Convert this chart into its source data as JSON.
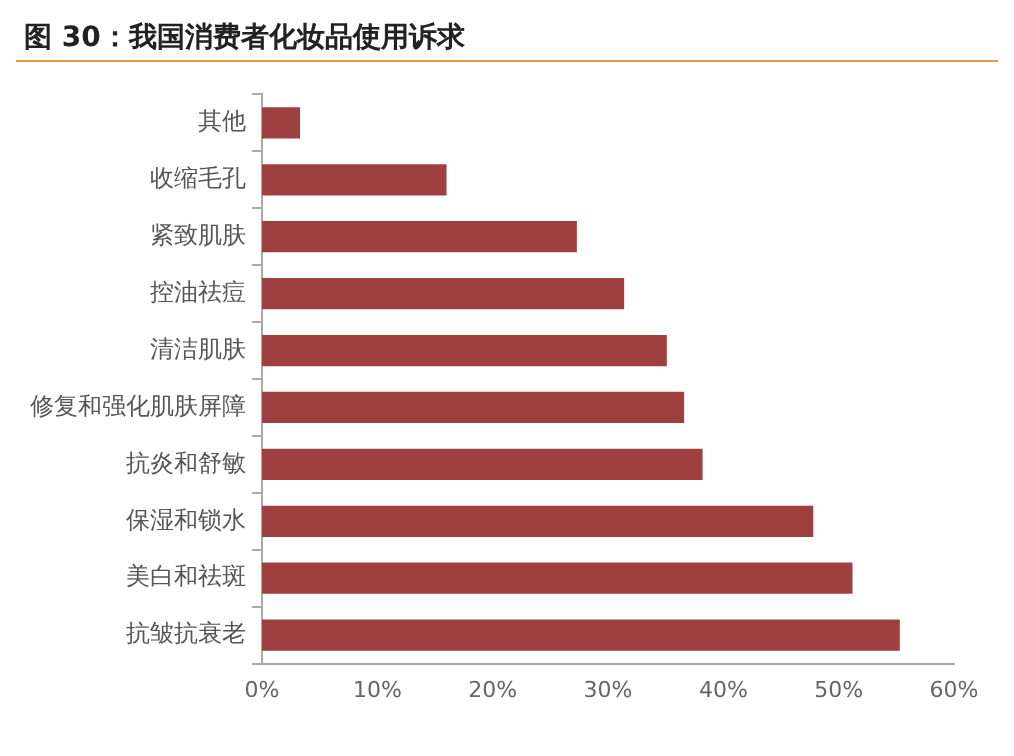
{
  "chart_data": {
    "type": "bar",
    "orientation": "horizontal",
    "title": "图 30：我国消费者化妆品使用诉求",
    "categories": [
      "其他",
      "收缩毛孔",
      "紧致肌肤",
      "控油祛痘",
      "清洁肌肤",
      "修复和强化肌肤屏障",
      "抗炎和舒敏",
      "保湿和锁水",
      "美白和祛斑",
      "抗皱抗衰老"
    ],
    "values": [
      3.3,
      16.0,
      27.3,
      31.4,
      35.1,
      36.6,
      38.2,
      47.8,
      51.2,
      55.3
    ],
    "color": "#9e4040",
    "xlim": [
      0,
      60
    ],
    "xticks": [
      {
        "value": 0,
        "label": "0%"
      },
      {
        "value": 10,
        "label": "10%"
      },
      {
        "value": 20,
        "label": "20%"
      },
      {
        "value": 30,
        "label": "30%"
      },
      {
        "value": 40,
        "label": "40%"
      },
      {
        "value": 50,
        "label": "50%"
      },
      {
        "value": 60,
        "label": "60%"
      }
    ],
    "grid": false,
    "legend": false
  }
}
